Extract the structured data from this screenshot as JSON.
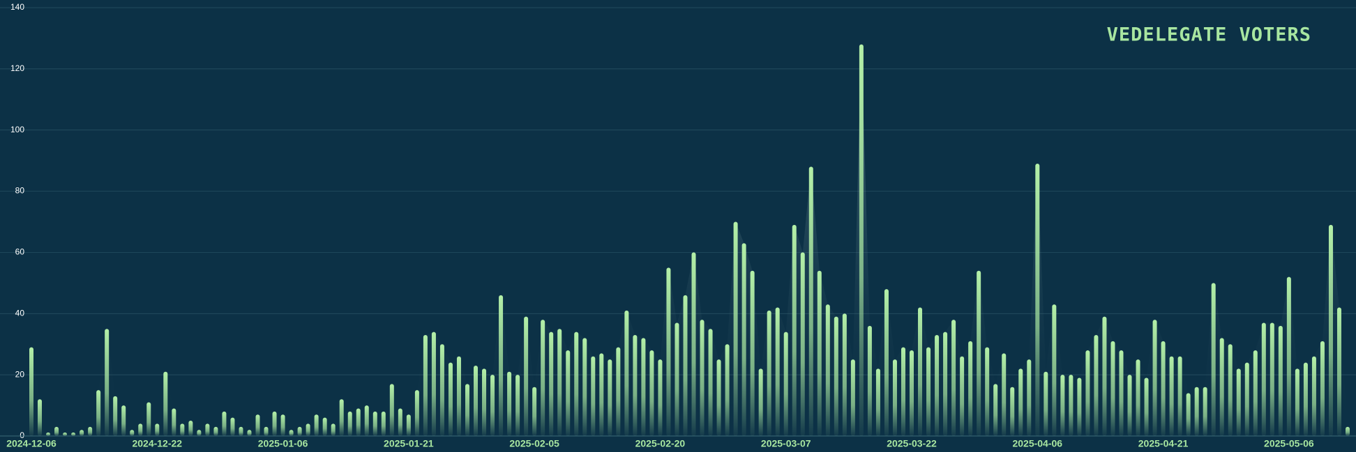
{
  "chart_data": {
    "type": "bar",
    "title": "VEDELEGATE VOTERS",
    "categories": [
      "2024-12-06",
      null,
      null,
      null,
      null,
      null,
      null,
      null,
      null,
      null,
      null,
      null,
      null,
      null,
      null,
      "2024-12-22",
      null,
      null,
      null,
      null,
      null,
      null,
      null,
      null,
      null,
      null,
      null,
      null,
      null,
      null,
      "2025-01-06",
      null,
      null,
      null,
      null,
      null,
      null,
      null,
      null,
      null,
      null,
      null,
      null,
      null,
      null,
      "2025-01-21",
      null,
      null,
      null,
      null,
      null,
      null,
      null,
      null,
      null,
      null,
      null,
      null,
      null,
      null,
      "2025-02-05",
      null,
      null,
      null,
      null,
      null,
      null,
      null,
      null,
      null,
      null,
      null,
      null,
      null,
      null,
      "2025-02-20",
      null,
      null,
      null,
      null,
      null,
      null,
      null,
      null,
      null,
      null,
      null,
      null,
      null,
      null,
      "2025-03-07",
      null,
      null,
      null,
      null,
      null,
      null,
      null,
      null,
      null,
      null,
      null,
      null,
      null,
      null,
      "2025-03-22",
      null,
      null,
      null,
      null,
      null,
      null,
      null,
      null,
      null,
      null,
      null,
      null,
      null,
      null,
      "2025-04-06",
      null,
      null,
      null,
      null,
      null,
      null,
      null,
      null,
      null,
      null,
      null,
      null,
      null,
      null,
      "2025-04-21",
      null,
      null,
      null,
      null,
      null,
      null,
      null,
      null,
      null,
      null,
      null,
      null,
      null,
      null,
      "2025-05-06",
      null,
      null,
      null,
      null,
      null,
      null,
      null
    ],
    "values": [
      29,
      12,
      1,
      3,
      1,
      1,
      2,
      3,
      15,
      35,
      13,
      10,
      2,
      4,
      11,
      4,
      21,
      9,
      4,
      5,
      2,
      4,
      3,
      8,
      6,
      3,
      2,
      7,
      3,
      8,
      7,
      2,
      3,
      4,
      7,
      6,
      4,
      12,
      8,
      9,
      10,
      8,
      8,
      17,
      9,
      7,
      15,
      33,
      34,
      30,
      24,
      26,
      17,
      23,
      22,
      20,
      46,
      21,
      20,
      39,
      16,
      38,
      34,
      35,
      28,
      34,
      32,
      26,
      27,
      25,
      29,
      41,
      33,
      32,
      28,
      25,
      55,
      37,
      46,
      60,
      38,
      35,
      25,
      30,
      70,
      63,
      54,
      22,
      41,
      42,
      34,
      69,
      60,
      88,
      54,
      43,
      39,
      40,
      25,
      128,
      36,
      22,
      48,
      25,
      29,
      28,
      42,
      29,
      33,
      34,
      38,
      26,
      31,
      54,
      29,
      17,
      27,
      16,
      22,
      25,
      89,
      21,
      43,
      20,
      20,
      19,
      28,
      33,
      39,
      31,
      28,
      20,
      25,
      19,
      38,
      31,
      26,
      26,
      14,
      16,
      16,
      50,
      32,
      30,
      22,
      24,
      28,
      37,
      37,
      36,
      52,
      22,
      24,
      26,
      31,
      69,
      42,
      3
    ],
    "color": "#a8e6a0",
    "ylim": [
      0,
      140
    ],
    "yticks": [
      0,
      20,
      40,
      60,
      80,
      100,
      120,
      140
    ],
    "grid": true
  }
}
